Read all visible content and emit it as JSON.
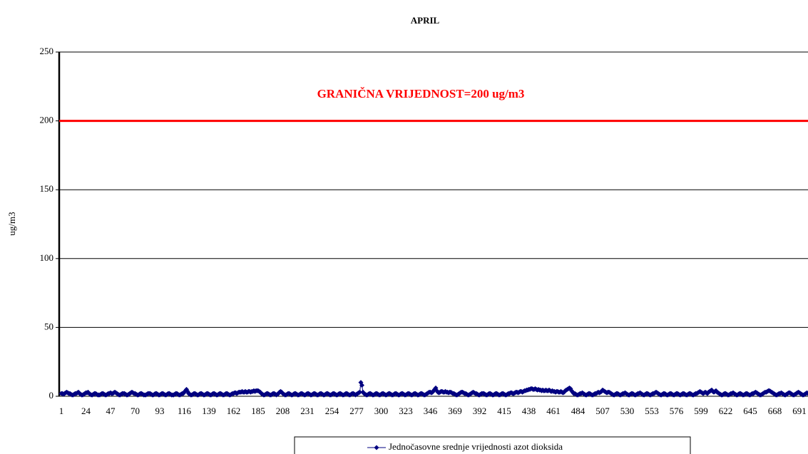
{
  "chart_data": {
    "type": "line",
    "title": "APRIL",
    "y_label": "ug/m3",
    "annotation": "GRANIČNA VRIJEDNOST=200 ug/m3",
    "limit": 200,
    "limit_color": "#ff0000",
    "ylim": [
      0,
      250
    ],
    "yticks": [
      0,
      50,
      100,
      150,
      200,
      250
    ],
    "grid": true,
    "categories": [
      1,
      null,
      null,
      null,
      null,
      null,
      null,
      null,
      null,
      null,
      null,
      null,
      null,
      null,
      null,
      null,
      null,
      null,
      null,
      null,
      null,
      null,
      null,
      24,
      null,
      null,
      null,
      null,
      null,
      null,
      null,
      null,
      null,
      null,
      null,
      null,
      null,
      null,
      null,
      null,
      null,
      null,
      null,
      null,
      null,
      null,
      47,
      null,
      null,
      null,
      null,
      null,
      null,
      null,
      null,
      null,
      null,
      null,
      null,
      null,
      null,
      null,
      null,
      null,
      null,
      null,
      null,
      null,
      null,
      70,
      null,
      null,
      null,
      null,
      null,
      null,
      null,
      null,
      null,
      null,
      null,
      null,
      null,
      null,
      null,
      null,
      null,
      null,
      null,
      null,
      null,
      null,
      93,
      null,
      null,
      null,
      null,
      null,
      null,
      null,
      null,
      null,
      null,
      null,
      null,
      null,
      null,
      null,
      null,
      null,
      null,
      null,
      null,
      null,
      null,
      116,
      null,
      null,
      null,
      null,
      null,
      null,
      null,
      null,
      null,
      null,
      null,
      null,
      null,
      null,
      null,
      null,
      null,
      null,
      null,
      null,
      null,
      null,
      139,
      null,
      null,
      null,
      null,
      null,
      null,
      null,
      null,
      null,
      null,
      null,
      null,
      null,
      null,
      null,
      null,
      null,
      null,
      null,
      null,
      null,
      null,
      162,
      null,
      null,
      null,
      null,
      null,
      null,
      null,
      null,
      null,
      null,
      null,
      null,
      null,
      null,
      null,
      null,
      null,
      null,
      null,
      null,
      null,
      null,
      185,
      null,
      null,
      null,
      null,
      null,
      null,
      null,
      null,
      null,
      null,
      null,
      null,
      null,
      null,
      null,
      null,
      null,
      null,
      null,
      null,
      null,
      null,
      208,
      null,
      null,
      null,
      null,
      null,
      null,
      null,
      null,
      null,
      null,
      null,
      null,
      null,
      null,
      null,
      null,
      null,
      null,
      null,
      null,
      null,
      null,
      231,
      null,
      null,
      null,
      null,
      null,
      null,
      null,
      null,
      null,
      null,
      null,
      null,
      null,
      null,
      null,
      null,
      null,
      null,
      null,
      null,
      null,
      null,
      254,
      null,
      null,
      null,
      null,
      null,
      null,
      null,
      null,
      null,
      null,
      null,
      null,
      null,
      null,
      null,
      null,
      null,
      null,
      null,
      null,
      null,
      null,
      277,
      null,
      null,
      null,
      null,
      null,
      null,
      null,
      null,
      null,
      null,
      null,
      null,
      null,
      null,
      null,
      null,
      null,
      null,
      null,
      null,
      null,
      null,
      300,
      null,
      null,
      null,
      null,
      null,
      null,
      null,
      null,
      null,
      null,
      null,
      null,
      null,
      null,
      null,
      null,
      null,
      null,
      null,
      null,
      null,
      null,
      323,
      null,
      null,
      null,
      null,
      null,
      null,
      null,
      null,
      null,
      null,
      null,
      null,
      null,
      null,
      null,
      null,
      null,
      null,
      null,
      null,
      null,
      null,
      346,
      null,
      null,
      null,
      null,
      null,
      null,
      null,
      null,
      null,
      null,
      null,
      null,
      null,
      null,
      null,
      null,
      null,
      null,
      null,
      null,
      null,
      null,
      369,
      null,
      null,
      null,
      null,
      null,
      null,
      null,
      null,
      null,
      null,
      null,
      null,
      null,
      null,
      null,
      null,
      null,
      null,
      null,
      null,
      null,
      null,
      392,
      null,
      null,
      null,
      null,
      null,
      null,
      null,
      null,
      null,
      null,
      null,
      null,
      null,
      null,
      null,
      null,
      null,
      null,
      null,
      null,
      null,
      null,
      415,
      null,
      null,
      null,
      null,
      null,
      null,
      null,
      null,
      null,
      null,
      null,
      null,
      null,
      null,
      null,
      null,
      null,
      null,
      null,
      null,
      null,
      null,
      438,
      null,
      null,
      null,
      null,
      null,
      null,
      null,
      null,
      null,
      null,
      null,
      null,
      null,
      null,
      null,
      null,
      null,
      null,
      null,
      null,
      null,
      null,
      461,
      null,
      null,
      null,
      null,
      null,
      null,
      null,
      null,
      null,
      null,
      null,
      null,
      null,
      null,
      null,
      null,
      null,
      null,
      null,
      null,
      null,
      null,
      484,
      null,
      null,
      null,
      null,
      null,
      null,
      null,
      null,
      null,
      null,
      null,
      null,
      null,
      null,
      null,
      null,
      null,
      null,
      null,
      null,
      null,
      null,
      507,
      null,
      null,
      null,
      null,
      null,
      null,
      null,
      null,
      null,
      null,
      null,
      null,
      null,
      null,
      null,
      null,
      null,
      null,
      null,
      null,
      null,
      null,
      530,
      null,
      null,
      null,
      null,
      null,
      null,
      null,
      null,
      null,
      null,
      null,
      null,
      null,
      null,
      null,
      null,
      null,
      null,
      null,
      null,
      null,
      null,
      553,
      null,
      null,
      null,
      null,
      null,
      null,
      null,
      null,
      null,
      null,
      null,
      null,
      null,
      null,
      null,
      null,
      null,
      null,
      null,
      null,
      null,
      null,
      576,
      null,
      null,
      null,
      null,
      null,
      null,
      null,
      null,
      null,
      null,
      null,
      null,
      null,
      null,
      null,
      null,
      null,
      null,
      null,
      null,
      null,
      null,
      599,
      null,
      null,
      null,
      null,
      null,
      null,
      null,
      null,
      null,
      null,
      null,
      null,
      null,
      null,
      null,
      null,
      null,
      null,
      null,
      null,
      null,
      null,
      622,
      null,
      null,
      null,
      null,
      null,
      null,
      null,
      null,
      null,
      null,
      null,
      null,
      null,
      null,
      null,
      null,
      null,
      null,
      null,
      null,
      null,
      null,
      645,
      null,
      null,
      null,
      null,
      null,
      null,
      null,
      null,
      null,
      null,
      null,
      null,
      null,
      null,
      null,
      null,
      null,
      null,
      null,
      null,
      null,
      null,
      668,
      null,
      null,
      null,
      null,
      null,
      null,
      null,
      null,
      null,
      null,
      null,
      null,
      null,
      null,
      null,
      null,
      null,
      null,
      null,
      null,
      null,
      null,
      691,
      null,
      null,
      null,
      null,
      null,
      null,
      null,
      null,
      null,
      null,
      null,
      null,
      null,
      null,
      null,
      null,
      null,
      null,
      null,
      null,
      null,
      null,
      null,
      null,
      null,
      null,
      null,
      null,
      null
    ],
    "series": [
      {
        "name": "Jednočasovne srednje vrijednosti azot dioksida",
        "color": "#000080",
        "values": [
          2,
          2,
          1.5,
          2,
          2.5,
          3,
          2.5,
          2,
          2,
          1.5,
          1,
          1,
          1.5,
          2,
          2,
          2.5,
          3,
          2,
          1.5,
          1,
          1,
          1.5,
          2,
          2.5,
          2.5,
          3,
          2,
          1.5,
          1,
          1,
          1.5,
          2,
          2,
          1.5,
          1,
          1,
          1,
          1.5,
          2,
          2,
          1.5,
          1,
          1,
          1.5,
          2,
          2,
          2.5,
          2,
          2,
          2.5,
          3,
          2.5,
          2,
          1.5,
          1,
          1,
          1.5,
          2,
          2,
          2,
          1.5,
          1,
          1,
          1.5,
          2,
          2.5,
          3,
          2.5,
          2,
          2,
          1.5,
          1,
          1,
          1.5,
          2,
          2,
          1.5,
          1,
          1,
          1,
          1.5,
          2,
          2,
          2,
          1.5,
          1,
          1,
          1.5,
          2,
          2,
          1.5,
          1,
          1,
          1.5,
          2,
          2,
          1.5,
          1,
          1,
          1.5,
          2,
          2,
          1.5,
          1,
          1,
          1,
          1.5,
          2,
          2,
          1.5,
          1,
          1,
          1.5,
          2,
          2,
          3,
          4,
          5,
          3.5,
          2,
          1.5,
          1,
          1,
          1.5,
          2,
          2,
          1.5,
          1,
          1,
          1.5,
          2,
          2,
          1.5,
          1,
          1,
          1.5,
          2,
          2,
          1.5,
          1,
          1,
          1.5,
          2,
          2,
          1.5,
          1,
          1,
          1.5,
          2,
          2,
          1.5,
          1,
          1,
          1.5,
          2,
          2,
          1.5,
          1,
          1,
          1.5,
          2,
          2,
          2.5,
          2.5,
          2,
          2.5,
          3,
          3,
          3,
          3.5,
          3,
          3,
          3.5,
          3,
          3,
          3.5,
          3.5,
          3,
          3.5,
          3.5,
          4,
          3.5,
          4,
          4,
          4,
          3.5,
          3,
          2,
          1.5,
          1,
          1,
          1.5,
          2,
          2,
          1.5,
          1,
          1,
          1.5,
          2,
          2,
          1.5,
          1,
          1.5,
          2,
          3,
          3.5,
          3,
          2,
          1.5,
          1,
          1,
          1.5,
          2,
          2,
          1.5,
          1,
          1,
          1.5,
          2,
          2,
          1.5,
          1,
          1,
          1.5,
          2,
          2,
          1.5,
          1,
          1,
          1.5,
          2,
          2,
          1.5,
          1,
          1,
          1.5,
          2,
          2,
          1.5,
          1,
          1,
          1.5,
          2,
          2,
          1.5,
          1,
          1,
          1.5,
          2,
          2,
          1.5,
          1,
          1,
          1.5,
          2,
          2,
          1.5,
          1,
          1,
          1.5,
          2,
          2,
          1.5,
          1,
          1,
          1.5,
          2,
          2,
          1.5,
          1,
          1,
          1.5,
          2,
          2,
          1.5,
          1,
          1.5,
          2,
          2.5,
          3,
          10,
          8,
          3,
          2,
          1.5,
          1,
          1,
          1.5,
          2,
          2,
          1.5,
          1,
          1,
          1.5,
          2,
          2,
          1.5,
          1,
          1,
          1.5,
          2,
          2,
          1.5,
          1,
          1,
          1.5,
          2,
          2,
          1.5,
          1,
          1,
          1.5,
          2,
          2,
          1.5,
          1,
          1,
          1.5,
          2,
          2,
          1.5,
          1,
          1,
          1.5,
          2,
          2,
          1.5,
          1,
          1,
          1.5,
          2,
          2,
          1.5,
          1,
          1,
          1.5,
          2,
          2,
          1.5,
          1,
          1,
          1.5,
          2,
          2.5,
          3,
          3,
          2.5,
          3,
          4,
          5,
          6,
          4,
          3,
          2.5,
          3,
          3.5,
          3.5,
          3,
          3,
          3.5,
          3,
          3,
          2.5,
          3,
          3,
          2.5,
          2,
          2,
          1.5,
          1,
          1,
          1.5,
          2,
          2.5,
          3,
          3,
          2.5,
          2,
          2,
          1.5,
          1,
          1,
          1.5,
          2,
          2.5,
          3,
          2.5,
          2,
          2,
          1.5,
          1,
          1,
          1.5,
          2,
          2,
          2,
          1.5,
          1,
          1,
          1.5,
          2,
          2,
          1.5,
          1,
          1,
          1.5,
          2,
          2,
          1.5,
          1,
          1,
          1.5,
          2,
          2,
          1.5,
          1,
          1,
          1.5,
          2,
          2,
          2.5,
          2.5,
          2,
          2,
          2.5,
          3,
          3,
          2.5,
          3,
          3.5,
          3.5,
          3,
          3.5,
          4,
          4,
          4.5,
          4.5,
          5,
          5,
          5.5,
          5.5,
          5,
          5,
          5.5,
          5,
          4.5,
          5,
          4.5,
          4.5,
          4,
          4.5,
          4,
          4,
          4.5,
          4,
          4,
          4.5,
          4,
          3.5,
          4,
          3.5,
          3.5,
          3,
          3.5,
          3.5,
          3,
          3,
          3.5,
          3,
          2.5,
          3,
          4,
          4.5,
          5,
          5.5,
          6,
          5.5,
          4,
          3,
          2,
          2,
          1.5,
          1,
          1,
          1.5,
          2,
          2,
          2.5,
          2,
          1.5,
          1,
          1,
          1.5,
          2,
          2,
          1.5,
          1,
          1,
          1.5,
          2,
          2,
          2.5,
          3,
          2.5,
          3,
          3.5,
          4.5,
          4,
          3.5,
          3,
          2.5,
          3,
          3,
          2.5,
          2,
          1.5,
          1,
          1,
          1.5,
          2,
          2,
          1.5,
          1,
          1,
          1.5,
          2,
          2,
          2.5,
          2,
          1.5,
          1,
          1,
          1.5,
          2,
          2,
          1.5,
          1,
          1,
          1.5,
          2,
          2,
          2.5,
          2,
          1.5,
          1,
          1,
          1.5,
          2,
          2,
          1.5,
          1,
          1,
          1.5,
          2,
          2,
          2.5,
          3,
          2.5,
          2,
          1.5,
          1,
          1,
          1.5,
          2,
          2,
          1.5,
          1,
          1,
          1.5,
          2,
          2,
          1.5,
          1,
          1,
          1.5,
          2,
          2,
          1.5,
          1,
          1,
          1.5,
          2,
          2,
          1.5,
          1,
          1,
          1.5,
          2,
          2,
          1.5,
          1,
          1,
          1.5,
          2,
          2,
          2.5,
          3,
          3.5,
          3,
          2.5,
          2,
          2.5,
          3,
          2.5,
          2,
          3,
          3.5,
          4,
          4.5,
          3.5,
          3,
          3.5,
          4,
          3,
          2.5,
          2,
          1.5,
          1,
          1,
          1.5,
          2,
          2,
          1.5,
          1,
          1,
          1.5,
          2,
          2,
          2.5,
          2,
          1.5,
          1,
          1,
          1.5,
          2,
          2,
          1.5,
          1,
          1,
          1.5,
          2,
          2,
          1.5,
          1,
          1,
          1.5,
          2,
          2,
          2.5,
          3,
          2.5,
          2,
          1.5,
          1,
          1,
          1.5,
          2,
          2.5,
          3,
          3,
          3.5,
          4,
          4,
          3.5,
          3,
          2.5,
          2,
          1.5,
          1,
          1,
          1.5,
          2,
          2,
          2.5,
          2,
          1.5,
          1,
          1,
          1.5,
          2,
          2.5,
          2.5,
          2,
          1.5,
          1,
          1,
          1.5,
          2,
          2.5,
          3,
          2.5,
          2,
          1.5,
          1,
          1,
          1.5,
          2,
          2.5,
          2,
          1.5,
          1,
          1,
          1.5,
          2,
          2,
          1.5,
          1,
          1,
          1.5,
          2,
          2,
          2.5,
          2,
          1.5,
          1,
          1,
          1.5,
          2,
          2,
          2
        ]
      }
    ]
  }
}
